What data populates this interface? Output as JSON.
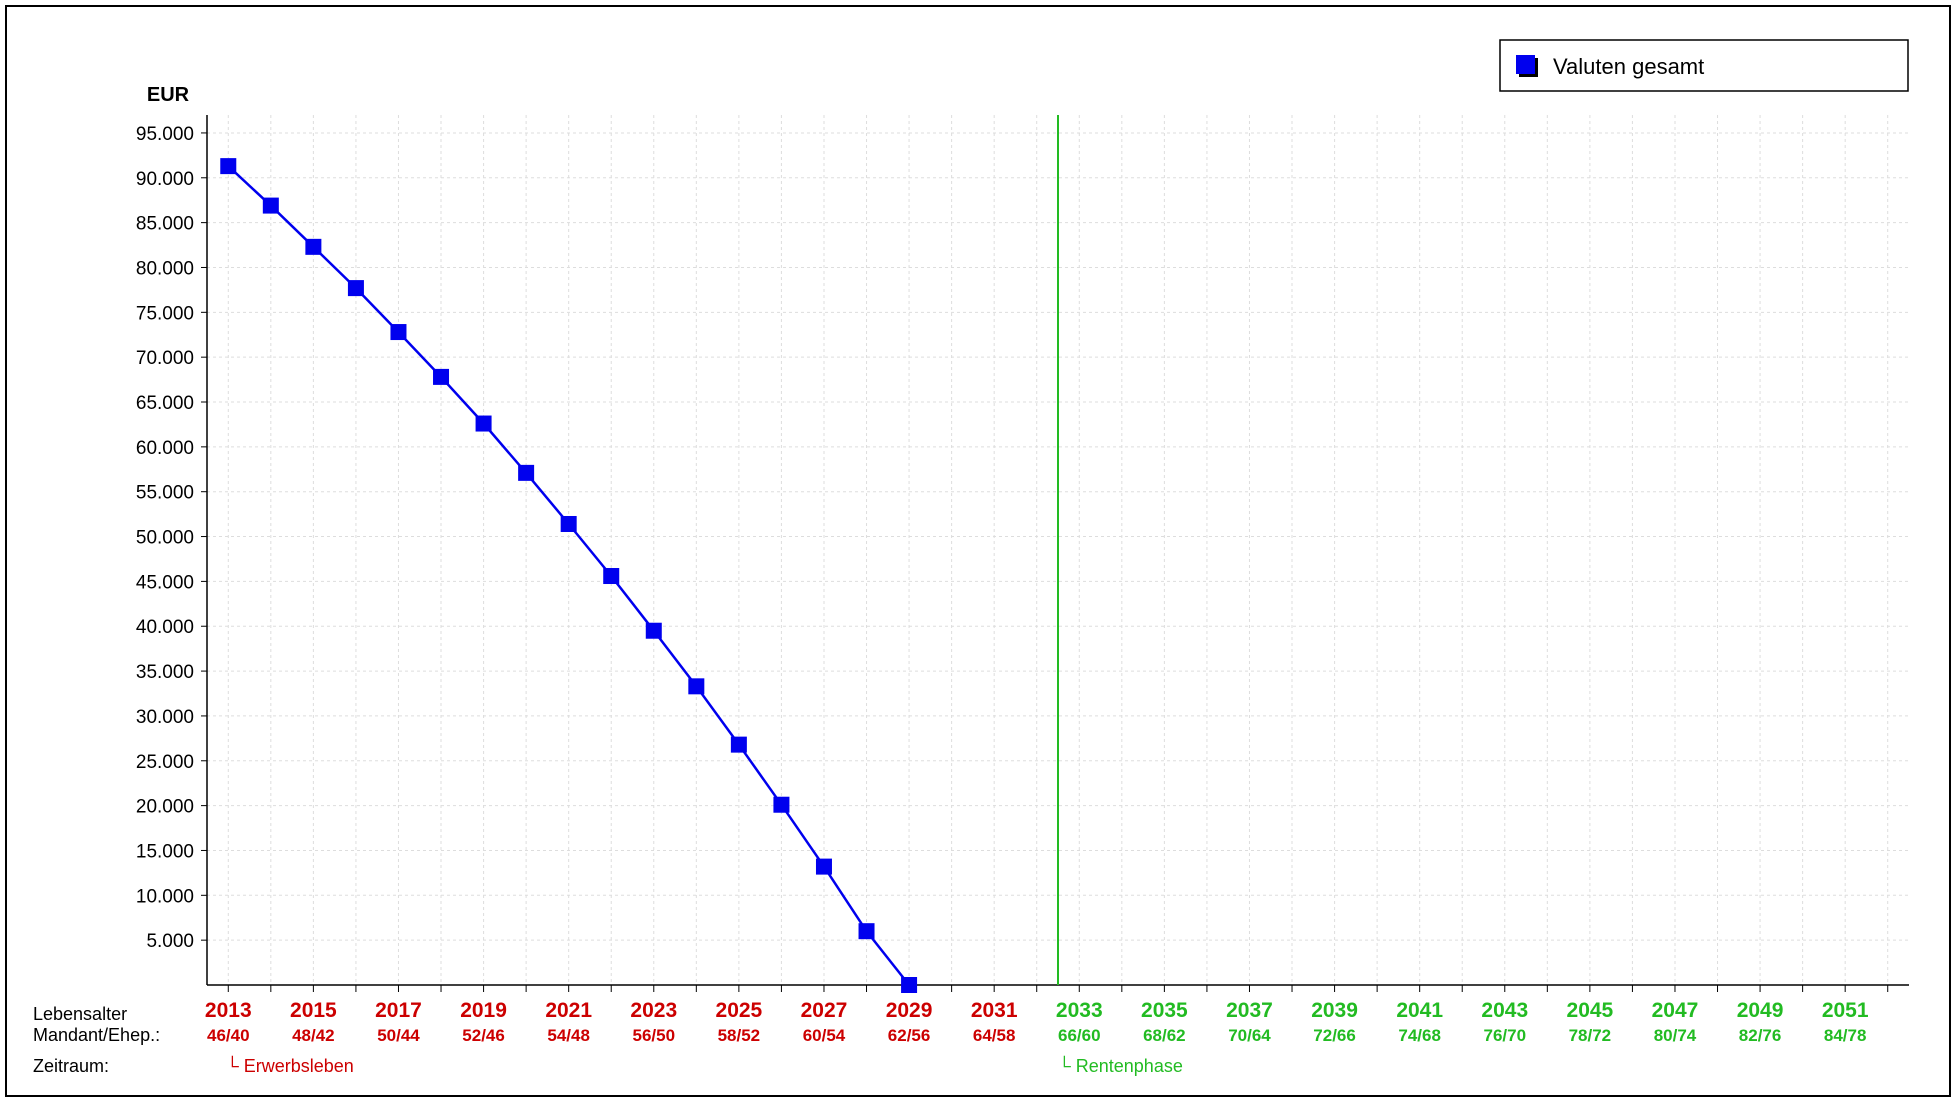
{
  "colors": {
    "erwerb": "#cc0000",
    "rente": "#22bb22",
    "series": "#0000ee",
    "grid": "#dddddd",
    "axis": "#000000"
  },
  "chart_data": {
    "type": "line",
    "ylabel": "EUR",
    "ylim": [
      0,
      97000
    ],
    "yticks": [
      5000,
      10000,
      15000,
      20000,
      25000,
      30000,
      35000,
      40000,
      45000,
      50000,
      55000,
      60000,
      65000,
      70000,
      75000,
      80000,
      85000,
      90000,
      95000
    ],
    "ytick_labels": [
      "5.000",
      "10.000",
      "15.000",
      "20.000",
      "25.000",
      "30.000",
      "35.000",
      "40.000",
      "45.000",
      "50.000",
      "55.000",
      "60.000",
      "65.000",
      "70.000",
      "75.000",
      "80.000",
      "85.000",
      "90.000",
      "95.000"
    ],
    "x": [
      2013,
      2014,
      2015,
      2016,
      2017,
      2018,
      2019,
      2020,
      2021,
      2022,
      2023,
      2024,
      2025,
      2026,
      2027,
      2028,
      2029,
      2030,
      2031,
      2032,
      2033,
      2034,
      2035,
      2036,
      2037,
      2038,
      2039,
      2040,
      2041,
      2042,
      2043,
      2044,
      2045,
      2046,
      2047,
      2048,
      2049,
      2050,
      2051,
      2052
    ],
    "xlim": [
      2012.5,
      2052.5
    ],
    "x_year_labels": [
      {
        "year": "2013",
        "age": "46/40",
        "phase": "erwerb"
      },
      {
        "year": "2015",
        "age": "48/42",
        "phase": "erwerb"
      },
      {
        "year": "2017",
        "age": "50/44",
        "phase": "erwerb"
      },
      {
        "year": "2019",
        "age": "52/46",
        "phase": "erwerb"
      },
      {
        "year": "2021",
        "age": "54/48",
        "phase": "erwerb"
      },
      {
        "year": "2023",
        "age": "56/50",
        "phase": "erwerb"
      },
      {
        "year": "2025",
        "age": "58/52",
        "phase": "erwerb"
      },
      {
        "year": "2027",
        "age": "60/54",
        "phase": "erwerb"
      },
      {
        "year": "2029",
        "age": "62/56",
        "phase": "erwerb"
      },
      {
        "year": "2031",
        "age": "64/58",
        "phase": "erwerb"
      },
      {
        "year": "2033",
        "age": "66/60",
        "phase": "rente"
      },
      {
        "year": "2035",
        "age": "68/62",
        "phase": "rente"
      },
      {
        "year": "2037",
        "age": "70/64",
        "phase": "rente"
      },
      {
        "year": "2039",
        "age": "72/66",
        "phase": "rente"
      },
      {
        "year": "2041",
        "age": "74/68",
        "phase": "rente"
      },
      {
        "year": "2043",
        "age": "76/70",
        "phase": "rente"
      },
      {
        "year": "2045",
        "age": "78/72",
        "phase": "rente"
      },
      {
        "year": "2047",
        "age": "80/74",
        "phase": "rente"
      },
      {
        "year": "2049",
        "age": "82/76",
        "phase": "rente"
      },
      {
        "year": "2051",
        "age": "84/78",
        "phase": "rente"
      }
    ],
    "phase_boundary_year": 2032.5,
    "series": [
      {
        "name": "Valuten gesamt",
        "color": "#0000ee",
        "marker": "square",
        "x": [
          2013,
          2014,
          2015,
          2016,
          2017,
          2018,
          2019,
          2020,
          2021,
          2022,
          2023,
          2024,
          2025,
          2026,
          2027,
          2028,
          2029
        ],
        "values": [
          91300,
          86900,
          82300,
          77700,
          72800,
          67800,
          62600,
          57100,
          51400,
          45600,
          39500,
          33300,
          26800,
          20100,
          13200,
          6000,
          0
        ]
      }
    ],
    "legend_position": "top-right",
    "grid": true
  },
  "row_labels": {
    "lebensalter": "Lebensalter",
    "mandant": "Mandant/Ehep.:",
    "zeitraum": "Zeitraum:"
  },
  "phases": {
    "erwerb_label": "└ Erwerbsleben",
    "rente_label": "└ Rentenphase"
  }
}
